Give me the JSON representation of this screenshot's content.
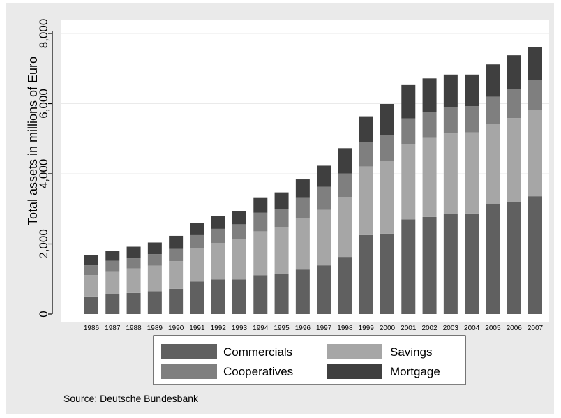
{
  "chart_data": {
    "type": "bar",
    "stacked": true,
    "ylabel": "Total assets in millions of Euro",
    "xlabel": "",
    "ylim": [
      0,
      8000
    ],
    "yticks": [
      0,
      2000,
      4000,
      6000,
      8000
    ],
    "ytick_labels": [
      "0",
      "2,000",
      "4,000",
      "6,000",
      "8,000"
    ],
    "grid": "horizontal",
    "categories": [
      "1986",
      "1987",
      "1988",
      "1989",
      "1990",
      "1991",
      "1992",
      "1993",
      "1994",
      "1995",
      "1996",
      "1997",
      "1998",
      "1999",
      "2000",
      "2001",
      "2002",
      "2003",
      "2004",
      "2005",
      "2006",
      "2007"
    ],
    "series": [
      {
        "name": "Commercials",
        "color": "#606060",
        "values": [
          500,
          560,
          600,
          650,
          720,
          930,
          990,
          990,
          1110,
          1150,
          1270,
          1390,
          1610,
          2250,
          2290,
          2700,
          2770,
          2860,
          2870,
          3150,
          3200,
          3360
        ]
      },
      {
        "name": "Savings",
        "color": "#a6a6a6",
        "values": [
          610,
          640,
          700,
          730,
          790,
          940,
          1040,
          1140,
          1250,
          1320,
          1460,
          1580,
          1720,
          1960,
          2080,
          2140,
          2250,
          2290,
          2310,
          2280,
          2390,
          2470
        ]
      },
      {
        "name": "Cooperatives",
        "color": "#7f7f7f",
        "values": [
          280,
          320,
          290,
          330,
          350,
          380,
          400,
          430,
          530,
          520,
          580,
          660,
          680,
          690,
          740,
          740,
          740,
          740,
          750,
          770,
          830,
          840
        ]
      },
      {
        "name": "Mortgage",
        "color": "#3f3f3f",
        "values": [
          290,
          280,
          330,
          330,
          370,
          350,
          360,
          380,
          420,
          480,
          530,
          600,
          720,
          740,
          880,
          950,
          960,
          940,
          900,
          920,
          960,
          940
        ]
      }
    ],
    "legend": {
      "position": "bottom",
      "columns": 2,
      "order": [
        "Commercials",
        "Savings",
        "Cooperatives",
        "Mortgage"
      ]
    },
    "note": "Source:  Deutsche Bundesbank"
  }
}
